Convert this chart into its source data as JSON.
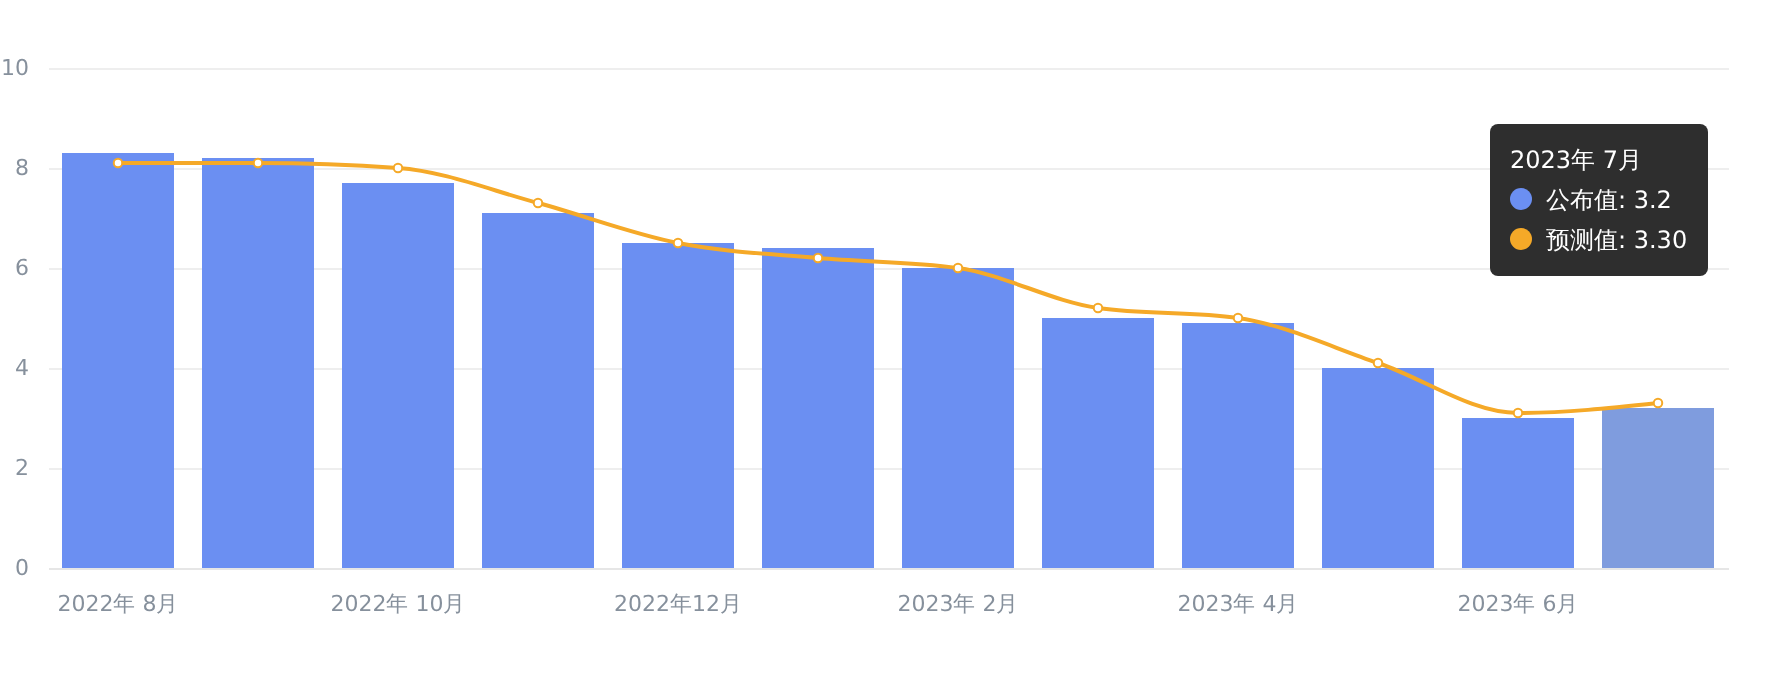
{
  "chart_data": {
    "type": "bar",
    "categories": [
      "2022年 8月",
      null,
      "2022年 10月",
      null,
      "2022年12月",
      null,
      "2023年 2月",
      null,
      "2023年 4月",
      null,
      "2023年 6月",
      null
    ],
    "series": [
      {
        "colors": [
          "#6b8ff2",
          "#6b8ff2",
          "#6b8ff2",
          "#6b8ff2",
          "#6b8ff2",
          "#6b8ff2",
          "#6b8ff2",
          "#6b8ff2",
          "#6b8ff2",
          "#6b8ff2",
          "#6b8ff2",
          "#7f9cde"
        ],
        "values": [
          8.3,
          8.2,
          7.7,
          7.1,
          6.5,
          6.4,
          6.0,
          5.0,
          4.9,
          4.0,
          3.0,
          3.2
        ]
      },
      {
        "type": "line",
        "color": "#f5a928",
        "values": [
          8.1,
          8.1,
          8.0,
          7.3,
          6.5,
          6.2,
          6.0,
          5.2,
          5.0,
          4.1,
          3.1,
          3.3
        ]
      }
    ],
    "annotations": [
      "2023年 7月",
      "公布值: 3.2",
      "预测值: 3.30"
    ],
    "ylim": [
      0,
      10
    ],
    "yticks": [
      0,
      2,
      4,
      6,
      8,
      10
    ],
    "grid": "y",
    "marker": "circle"
  }
}
